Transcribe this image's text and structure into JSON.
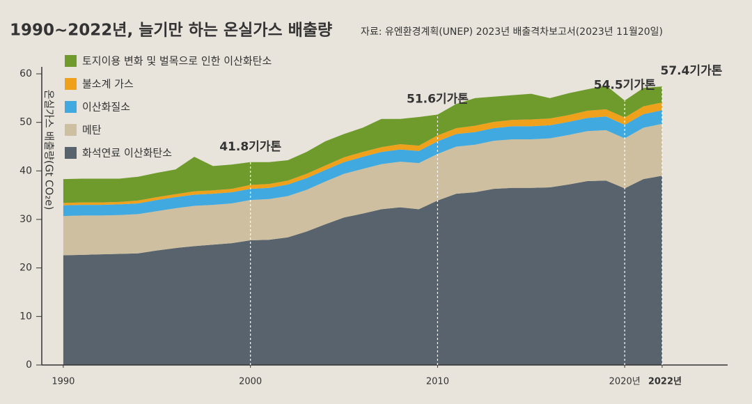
{
  "chart_data": {
    "type": "stacked-area",
    "title": "1990~2022년, 늘기만 하는 온실가스 배출량",
    "subtitle": "자료: 유엔환경계획(UNEP) 2023년 배출격차보고서(2023년 11월20일)",
    "y_label": "온실가스 배출량(Gt CO₂e)",
    "x": [
      1990,
      1991,
      1992,
      1993,
      1994,
      1995,
      1996,
      1997,
      1998,
      1999,
      2000,
      2001,
      2002,
      2003,
      2004,
      2005,
      2006,
      2007,
      2008,
      2009,
      2010,
      2011,
      2012,
      2013,
      2014,
      2015,
      2016,
      2017,
      2018,
      2019,
      2020,
      2021,
      2022
    ],
    "series": [
      {
        "name": "화석연료 이산화탄소",
        "color": "#58636d",
        "values": [
          22.6,
          22.7,
          22.8,
          22.9,
          23.0,
          23.6,
          24.1,
          24.5,
          24.8,
          25.1,
          25.7,
          25.8,
          26.3,
          27.5,
          29.0,
          30.4,
          31.2,
          32.1,
          32.5,
          32.1,
          33.9,
          35.3,
          35.6,
          36.3,
          36.5,
          36.5,
          36.6,
          37.2,
          37.9,
          38.0,
          36.4,
          38.3,
          39.0
        ]
      },
      {
        "name": "메탄",
        "color": "#cdbf9f",
        "values": [
          8.1,
          8.1,
          8.0,
          8.0,
          8.1,
          8.1,
          8.2,
          8.3,
          8.2,
          8.2,
          8.3,
          8.4,
          8.5,
          8.6,
          8.8,
          9.0,
          9.2,
          9.3,
          9.4,
          9.5,
          9.6,
          9.7,
          9.8,
          9.9,
          10.0,
          10.0,
          10.1,
          10.2,
          10.3,
          10.4,
          10.3,
          10.6,
          10.7
        ]
      },
      {
        "name": "이산화질소",
        "color": "#3fa9e0",
        "values": [
          2.2,
          2.2,
          2.2,
          2.2,
          2.2,
          2.3,
          2.3,
          2.3,
          2.3,
          2.3,
          2.3,
          2.3,
          2.4,
          2.4,
          2.4,
          2.4,
          2.5,
          2.5,
          2.5,
          2.5,
          2.6,
          2.6,
          2.6,
          2.6,
          2.7,
          2.7,
          2.7,
          2.7,
          2.7,
          2.8,
          2.8,
          2.8,
          2.8
        ]
      },
      {
        "name": "불소계 가스",
        "color": "#f0a11c",
        "values": [
          0.5,
          0.5,
          0.5,
          0.5,
          0.6,
          0.6,
          0.6,
          0.7,
          0.7,
          0.7,
          0.8,
          0.8,
          0.8,
          0.9,
          0.9,
          1.0,
          1.0,
          1.0,
          1.1,
          1.1,
          1.2,
          1.2,
          1.3,
          1.3,
          1.3,
          1.4,
          1.4,
          1.4,
          1.5,
          1.5,
          1.5,
          1.6,
          1.6
        ]
      },
      {
        "name": "토지이용 변화 및 벌목으로 인한 이산화탄소",
        "color": "#6f9a2c",
        "values": [
          4.9,
          4.9,
          4.9,
          4.8,
          4.9,
          5.0,
          5.1,
          7.1,
          5.0,
          5.0,
          4.7,
          4.5,
          4.2,
          4.5,
          5.0,
          4.8,
          5.0,
          5.8,
          5.2,
          5.9,
          4.3,
          5.0,
          5.7,
          5.2,
          5.1,
          5.3,
          4.2,
          4.5,
          4.4,
          4.9,
          3.5,
          3.8,
          3.3
        ]
      }
    ],
    "xlim": [
      1988.85,
      2025.5
    ],
    "xticks": [
      1990,
      2000,
      2010,
      {
        "value": 2020,
        "label": "2020년"
      },
      {
        "value": 2022,
        "label": "2022년"
      }
    ],
    "ylim": [
      0,
      60
    ],
    "yticks": [
      0,
      10,
      20,
      30,
      40,
      50,
      60
    ],
    "annotations": [
      {
        "x": 2000,
        "value": 41.8,
        "label": "41.8기가톤",
        "color": "#222222"
      },
      {
        "x": 2010,
        "value": 51.6,
        "label": "51.6기가톤",
        "color": "#222222"
      },
      {
        "x": 2020,
        "value": 54.5,
        "label": "54.5기가톤",
        "color": "#222222"
      },
      {
        "x": 2022,
        "value": 57.4,
        "label": "57.4기가톤",
        "color": "#d7282f"
      }
    ]
  }
}
